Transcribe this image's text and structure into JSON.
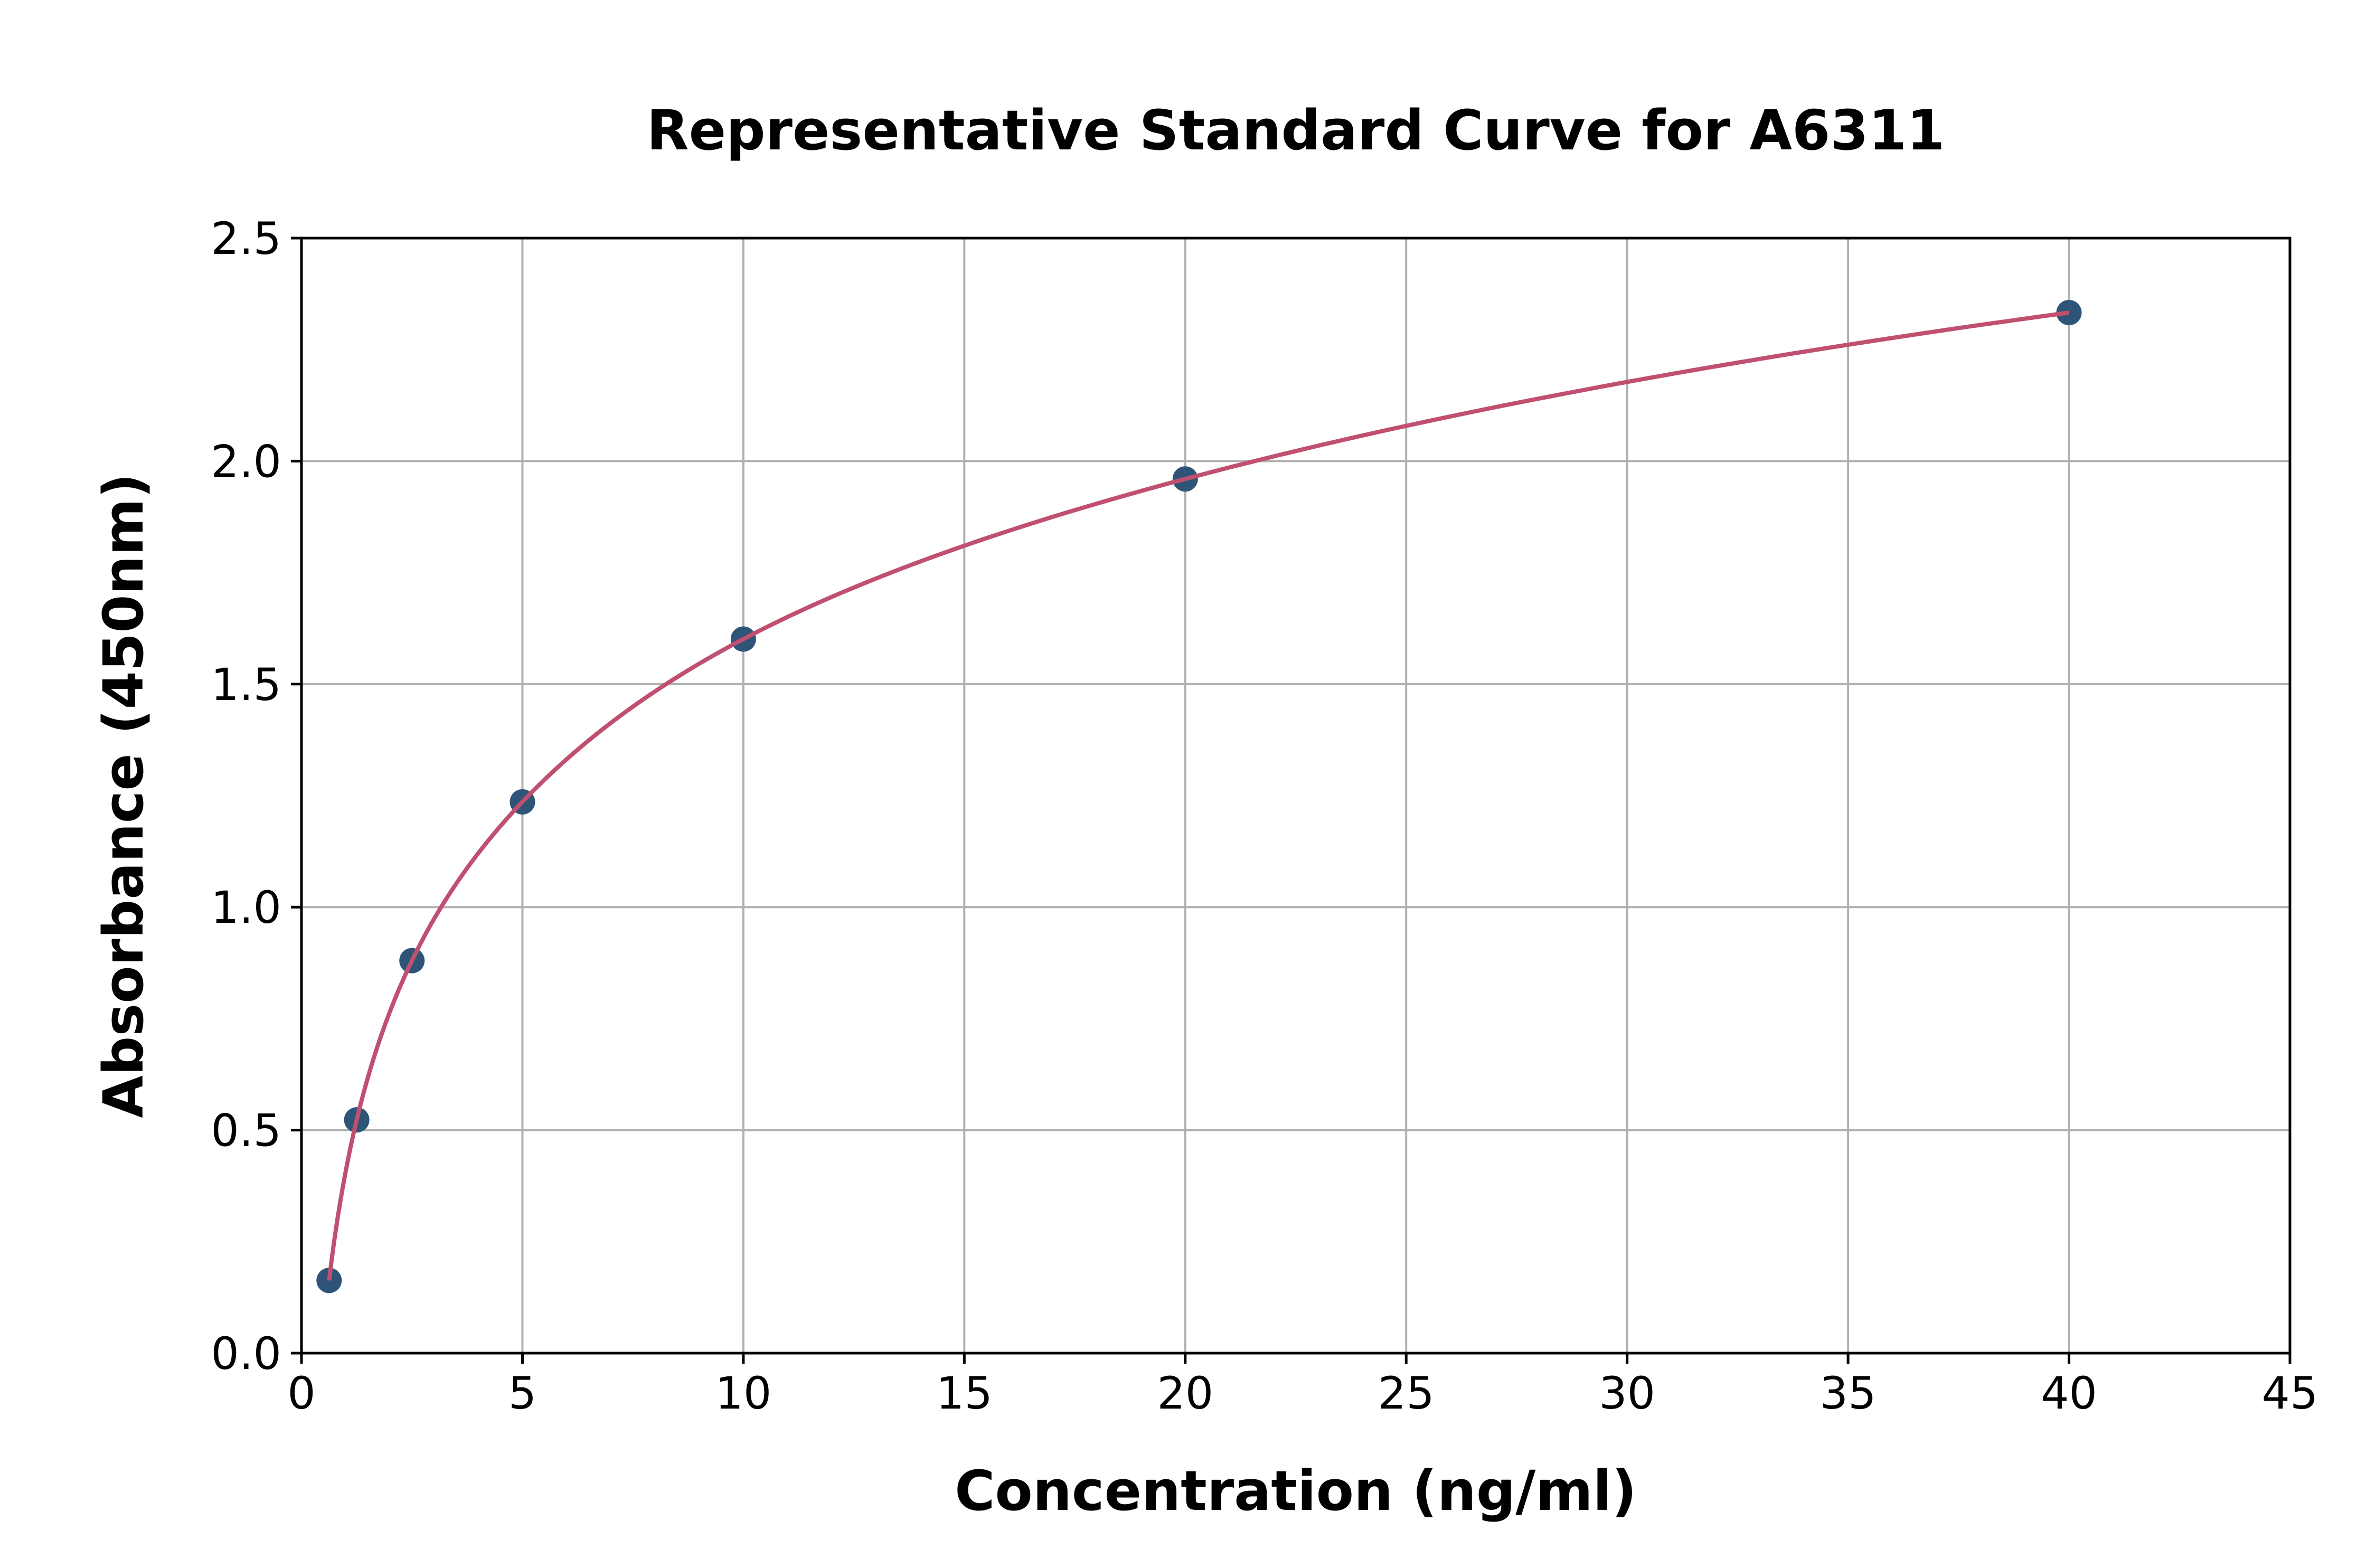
{
  "chart_data": {
    "type": "scatter",
    "title": "Representative Standard Curve for A6311",
    "xlabel": "Concentration (ng/ml)",
    "ylabel": "Absorbance (450nm)",
    "xlim": [
      0,
      45
    ],
    "ylim": [
      0,
      2.5
    ],
    "xticks": [
      "0",
      "5",
      "10",
      "15",
      "20",
      "25",
      "30",
      "35",
      "40",
      "45"
    ],
    "yticks": [
      "0.0",
      "0.5",
      "1.0",
      "1.5",
      "2.0",
      "2.5"
    ],
    "grid": true,
    "points": {
      "x": [
        0.625,
        1.25,
        2.5,
        5,
        10,
        20,
        40
      ],
      "y": [
        0.163,
        0.523,
        0.88,
        1.236,
        1.601,
        1.96,
        2.333
      ]
    },
    "fit_curve": true,
    "colors": {
      "points": "#2e5478",
      "curve": "#c0506f",
      "grid": "#b0b0b0"
    }
  }
}
